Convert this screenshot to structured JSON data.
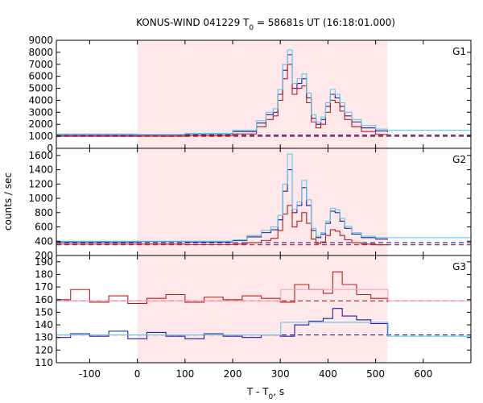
{
  "chart_data": {
    "type": "line",
    "title_main": "KONUS-WIND 041229 T",
    "title_sub": "0",
    "title_rest": " = 58681s UT (16:18:01.000)",
    "xlabel_main": "T - T",
    "xlabel_sub": "0",
    "xlabel_rest": ", s",
    "ylabel": "counts / sec",
    "xlim": [
      -170,
      700
    ],
    "xticks": [
      -100,
      0,
      100,
      200,
      300,
      400,
      500,
      600
    ],
    "xtick_labels": [
      "-100",
      "0",
      "100",
      "200",
      "300",
      "400",
      "500",
      "600"
    ],
    "shaded_interval": [
      0,
      525
    ],
    "panels": [
      {
        "name": "G1",
        "ylim": [
          0,
          9000
        ],
        "yticks": [
          0,
          1000,
          2000,
          3000,
          4000,
          5000,
          6000,
          7000,
          8000,
          9000
        ],
        "ytick_labels": [
          "0",
          "1000",
          "2000",
          "3000",
          "4000",
          "5000",
          "6000",
          "7000",
          "8000",
          "9000"
        ],
        "background_levels": [
          1000,
          1100
        ],
        "series": [
          {
            "color": "#1f1fa0",
            "x": [
              -170,
              0,
              100,
              200,
              250,
              270,
              285,
              295,
              305,
              315,
              325,
              335,
              345,
              355,
              365,
              375,
              385,
              395,
              405,
              415,
              425,
              435,
              450,
              470,
              500,
              525
            ],
            "y": [
              1100,
              1100,
              1200,
              1400,
              2100,
              2800,
              3000,
              4500,
              6500,
              7800,
              5000,
              5400,
              5800,
              4200,
              2500,
              2000,
              2400,
              3500,
              4500,
              4200,
              3500,
              2700,
              2200,
              1700,
              1450,
              1350
            ]
          },
          {
            "color": "#b02020",
            "x": [
              -170,
              0,
              100,
              200,
              250,
              270,
              285,
              295,
              305,
              315,
              325,
              335,
              345,
              355,
              365,
              375,
              385,
              395,
              405,
              415,
              425,
              435,
              450,
              470,
              500,
              525
            ],
            "y": [
              1000,
              1000,
              1050,
              1200,
              1800,
              2400,
              2700,
              4000,
              5800,
              7000,
              4500,
              5000,
              5200,
              3800,
              2200,
              1700,
              2000,
              3000,
              4000,
              3800,
              3100,
              2400,
              1800,
              1400,
              1150,
              1100
            ]
          },
          {
            "color": "#60c8e8",
            "x": [
              -170,
              0,
              100,
              200,
              250,
              270,
              285,
              295,
              305,
              315,
              325,
              335,
              345,
              355,
              365,
              375,
              385,
              395,
              405,
              415,
              425,
              435,
              450,
              470,
              500,
              525,
              700
            ],
            "y": [
              1200,
              1150,
              1250,
              1500,
              2300,
              3000,
              3300,
              4900,
              7000,
              8200,
              5400,
              5800,
              6200,
              4600,
              2800,
              2200,
              2600,
              3800,
              4900,
              4500,
              3800,
              3000,
              2400,
              1900,
              1600,
              1500,
              1500
            ]
          }
        ]
      },
      {
        "name": "G2",
        "ylim": [
          200,
          1700
        ],
        "yticks": [
          200,
          400,
          600,
          800,
          1000,
          1200,
          1400,
          1600
        ],
        "ytick_labels": [
          "200",
          "400",
          "600",
          "800",
          "1000",
          "1200",
          "1400",
          "1600"
        ],
        "background_levels": [
          350,
          380
        ],
        "series": [
          {
            "color": "#1f1fa0",
            "x": [
              -170,
              0,
              100,
              200,
              230,
              260,
              280,
              295,
              305,
              315,
              325,
              335,
              345,
              355,
              365,
              375,
              385,
              395,
              405,
              415,
              425,
              435,
              450,
              470,
              500,
              525
            ],
            "y": [
              390,
              395,
              390,
              410,
              460,
              520,
              560,
              700,
              1100,
              1400,
              800,
              900,
              1150,
              900,
              550,
              450,
              500,
              650,
              820,
              800,
              680,
              580,
              500,
              450,
              430,
              420
            ]
          },
          {
            "color": "#b02020",
            "x": [
              -170,
              0,
              100,
              200,
              230,
              260,
              280,
              295,
              305,
              315,
              325,
              335,
              345,
              355,
              365,
              375,
              385,
              395,
              405,
              415,
              425,
              435,
              450,
              470,
              500,
              525
            ],
            "y": [
              360,
              360,
              355,
              360,
              380,
              410,
              440,
              550,
              780,
              900,
              600,
              680,
              800,
              650,
              430,
              370,
              390,
              480,
              560,
              540,
              480,
              420,
              380,
              360,
              350,
              350
            ]
          },
          {
            "color": "#60c8e8",
            "x": [
              -170,
              0,
              100,
              200,
              230,
              260,
              280,
              295,
              305,
              315,
              325,
              335,
              345,
              355,
              365,
              375,
              385,
              395,
              405,
              415,
              425,
              435,
              450,
              470,
              500,
              525,
              700
            ],
            "y": [
              400,
              400,
              400,
              420,
              480,
              550,
              600,
              760,
              1200,
              1620,
              850,
              950,
              1250,
              980,
              580,
              470,
              520,
              680,
              860,
              840,
              720,
              610,
              520,
              470,
              450,
              450,
              450
            ]
          }
        ]
      },
      {
        "name": "G3",
        "ylim": [
          110,
          195
        ],
        "yticks": [
          110,
          120,
          130,
          140,
          150,
          160,
          170,
          180,
          190
        ],
        "ytick_labels": [
          "110",
          "120",
          "130",
          "140",
          "150",
          "160",
          "170",
          "180",
          "190"
        ],
        "background_levels": [
          159,
          132
        ],
        "series": [
          {
            "color": "#b02020",
            "x": [
              -170,
              -140,
              -100,
              -60,
              -20,
              20,
              60,
              100,
              140,
              180,
              220,
              260,
              300,
              330,
              360,
              390,
              410,
              430,
              460,
              490,
              525
            ],
            "y": [
              160,
              168,
              158,
              163,
              157,
              161,
              164,
              158,
              162,
              160,
              163,
              161,
              158,
              172,
              168,
              165,
              182,
              172,
              164,
              161,
              158
            ]
          },
          {
            "color": "#1f1fa0",
            "x": [
              -170,
              -140,
              -100,
              -60,
              -20,
              20,
              60,
              100,
              140,
              180,
              220,
              260,
              300,
              330,
              360,
              390,
              410,
              430,
              460,
              490,
              525
            ],
            "y": [
              130,
              133,
              131,
              135,
              129,
              134,
              131,
              129,
              133,
              131,
              130,
              132,
              131,
              140,
              143,
              145,
              153,
              147,
              144,
              141,
              131
            ]
          },
          {
            "color": "#60c8e8",
            "x": [
              -170,
              300,
              301,
              525,
              526,
              700
            ],
            "y": [
              132,
              132,
              142,
              142,
              131,
              131
            ]
          },
          {
            "color": "#f0a0c0",
            "x": [
              -170,
              300,
              301,
              525,
              526,
              700
            ],
            "y": [
              159,
              159,
              168,
              168,
              159,
              159
            ]
          }
        ]
      }
    ]
  }
}
